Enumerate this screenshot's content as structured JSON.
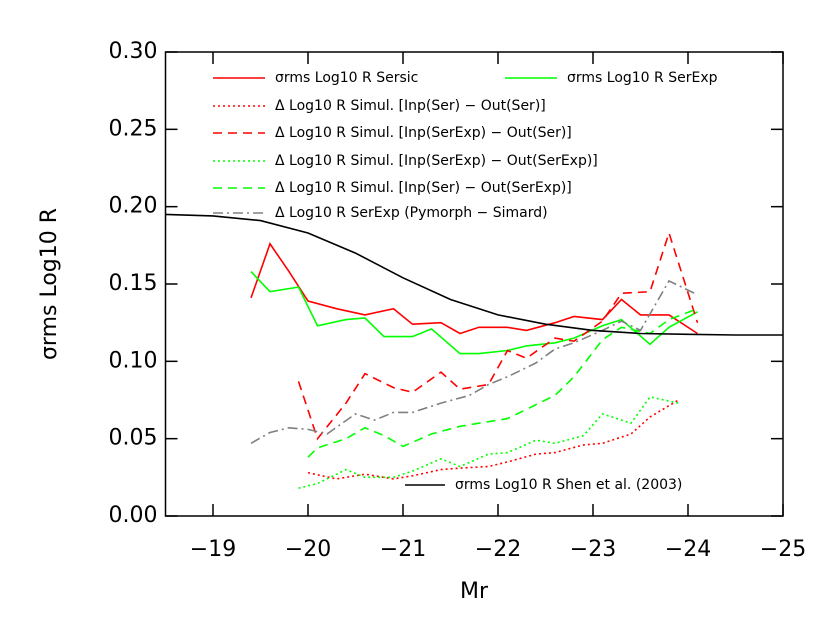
{
  "chart_data": {
    "type": "line",
    "xlabel": "Mr",
    "ylabel": "σrms Log10 R",
    "xlim": [
      -18.5,
      -25
    ],
    "ylim": [
      0,
      0.3
    ],
    "xticks": [
      {
        "value": -19,
        "label": "−19"
      },
      {
        "value": -20,
        "label": "−20"
      },
      {
        "value": -21,
        "label": "−21"
      },
      {
        "value": -22,
        "label": "−22"
      },
      {
        "value": -23,
        "label": "−23"
      },
      {
        "value": -24,
        "label": "−24"
      },
      {
        "value": -25,
        "label": "−25"
      }
    ],
    "yticks": [
      {
        "value": 0,
        "label": "0.00"
      },
      0.05,
      {
        "value": 0.1,
        "label": "0.10"
      },
      0.15,
      {
        "value": 0.2,
        "label": "0.20"
      },
      0.25,
      {
        "value": 0.3,
        "label": "0.30"
      }
    ],
    "series": [
      {
        "name": "σrms Log10 R Sersic",
        "color": "#ff0000",
        "dash": "solid",
        "x": [
          -19.4,
          -19.6,
          -19.8,
          -20.0,
          -20.3,
          -20.6,
          -20.9,
          -21.1,
          -21.4,
          -21.6,
          -21.8,
          -22.1,
          -22.3,
          -22.6,
          -22.8,
          -23.1,
          -23.3,
          -23.5,
          -23.8,
          -24.1
        ],
        "values": [
          0.141,
          0.176,
          0.158,
          0.139,
          0.134,
          0.13,
          0.134,
          0.124,
          0.125,
          0.118,
          0.122,
          0.122,
          0.12,
          0.125,
          0.129,
          0.127,
          0.14,
          0.13,
          0.13,
          0.118
        ]
      },
      {
        "name": "σrms Log10 R SerExp",
        "color": "#00ff00",
        "dash": "solid",
        "x": [
          -19.4,
          -19.6,
          -19.9,
          -20.1,
          -20.4,
          -20.6,
          -20.8,
          -21.1,
          -21.3,
          -21.6,
          -21.8,
          -22.1,
          -22.3,
          -22.6,
          -22.8,
          -23.1,
          -23.3,
          -23.6,
          -23.8,
          -24.1
        ],
        "values": [
          0.158,
          0.145,
          0.148,
          0.123,
          0.127,
          0.128,
          0.116,
          0.116,
          0.121,
          0.105,
          0.105,
          0.107,
          0.11,
          0.112,
          0.115,
          0.123,
          0.127,
          0.111,
          0.122,
          0.132
        ]
      },
      {
        "name": "Δ Log10 R Simul. [Inp(Ser) − Out(Ser)]",
        "color": "#ff0000",
        "dash": "dotted",
        "x": [
          -20.0,
          -20.3,
          -20.6,
          -20.9,
          -21.1,
          -21.4,
          -21.6,
          -21.9,
          -22.1,
          -22.4,
          -22.6,
          -22.9,
          -23.1,
          -23.4,
          -23.6,
          -23.9
        ],
        "values": [
          0.028,
          0.024,
          0.027,
          0.024,
          0.026,
          0.03,
          0.031,
          0.032,
          0.035,
          0.04,
          0.041,
          0.046,
          0.047,
          0.053,
          0.064,
          0.075
        ]
      },
      {
        "name": "Δ Log10 R Simul. [Inp(SerExp) − Out(Ser)]",
        "color": "#ff0000",
        "dash": "dashed",
        "x": [
          -19.9,
          -20.1,
          -20.4,
          -20.6,
          -20.9,
          -21.1,
          -21.4,
          -21.6,
          -21.9,
          -22.1,
          -22.3,
          -22.6,
          -22.8,
          -23.1,
          -23.3,
          -23.6,
          -23.8,
          -24.1
        ],
        "values": [
          0.087,
          0.05,
          0.073,
          0.092,
          0.083,
          0.08,
          0.093,
          0.082,
          0.085,
          0.107,
          0.102,
          0.115,
          0.113,
          0.126,
          0.144,
          0.145,
          0.183,
          0.125
        ]
      },
      {
        "name": "Δ Log10 R Simul. [Inp(SerExp) − Out(SerExp)]",
        "color": "#00ff00",
        "dash": "dotted",
        "x": [
          -19.9,
          -20.1,
          -20.4,
          -20.6,
          -20.9,
          -21.1,
          -21.4,
          -21.6,
          -21.9,
          -22.1,
          -22.4,
          -22.6,
          -22.9,
          -23.1,
          -23.4,
          -23.6,
          -23.9
        ],
        "values": [
          0.018,
          0.021,
          0.03,
          0.025,
          0.025,
          0.029,
          0.037,
          0.032,
          0.04,
          0.041,
          0.049,
          0.047,
          0.052,
          0.066,
          0.06,
          0.077,
          0.073
        ]
      },
      {
        "name": "Δ Log10 R Simul. [Inp(Ser) − Out(SerExp)]",
        "color": "#00ff00",
        "dash": "dashed",
        "x": [
          -20.0,
          -20.1,
          -20.4,
          -20.6,
          -20.8,
          -21.0,
          -21.3,
          -21.6,
          -21.8,
          -22.1,
          -22.3,
          -22.6,
          -22.8,
          -23.1,
          -23.3,
          -23.6,
          -23.8,
          -24.1
        ],
        "values": [
          0.038,
          0.044,
          0.05,
          0.057,
          0.052,
          0.045,
          0.053,
          0.058,
          0.06,
          0.063,
          0.069,
          0.078,
          0.09,
          0.114,
          0.122,
          0.118,
          0.127,
          0.134
        ]
      },
      {
        "name": "Δ Log10 R SerExp (Pymorph − Simard)",
        "color": "#808080",
        "dash": "dashdot",
        "x": [
          -19.4,
          -19.6,
          -19.8,
          -20.0,
          -20.2,
          -20.5,
          -20.7,
          -20.9,
          -21.1,
          -21.4,
          -21.7,
          -21.9,
          -22.1,
          -22.4,
          -22.6,
          -22.8,
          -23.1,
          -23.3,
          -23.5,
          -23.8,
          -24.1
        ],
        "values": [
          0.047,
          0.054,
          0.057,
          0.056,
          0.053,
          0.066,
          0.062,
          0.067,
          0.067,
          0.073,
          0.078,
          0.085,
          0.09,
          0.099,
          0.108,
          0.112,
          0.12,
          0.126,
          0.12,
          0.152,
          0.143
        ]
      },
      {
        "name": "σrms Log10 R Shen et al. (2003)",
        "color": "#000000",
        "dash": "solid",
        "x": [
          -18.5,
          -19.0,
          -19.5,
          -20.0,
          -20.5,
          -21.0,
          -21.5,
          -22.0,
          -22.5,
          -23.0,
          -23.5,
          -24.0,
          -24.5,
          -25.0
        ],
        "values": [
          0.195,
          0.194,
          0.191,
          0.183,
          0.17,
          0.154,
          0.14,
          0.13,
          0.124,
          0.12,
          0.118,
          0.1175,
          0.117,
          0.117
        ]
      }
    ]
  }
}
